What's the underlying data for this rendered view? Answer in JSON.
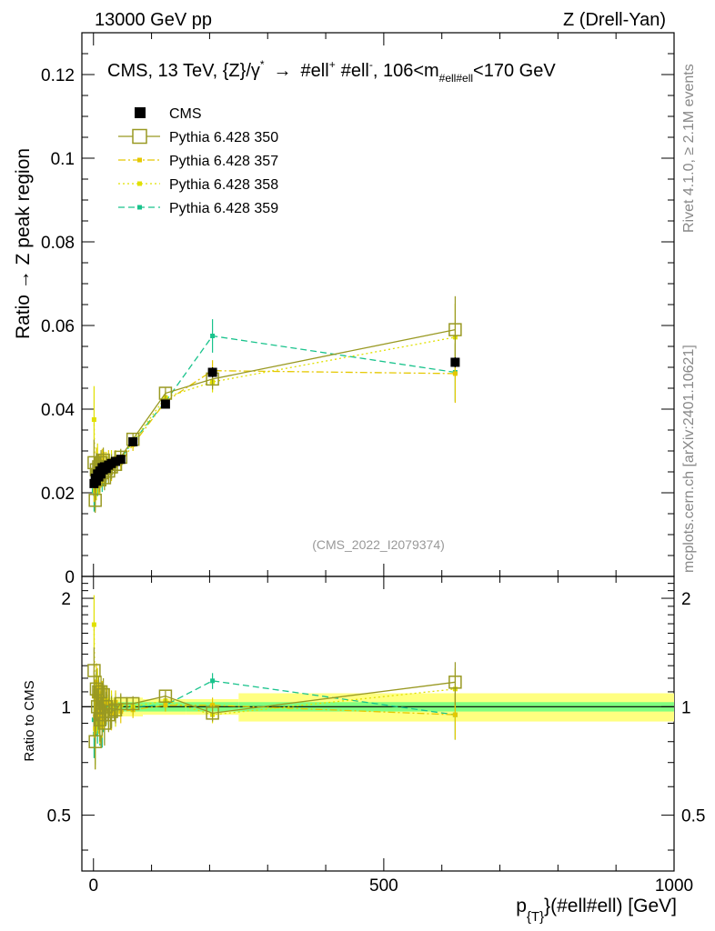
{
  "header": {
    "energy_label": "13000 GeV pp",
    "process_label": "Z (Drell-Yan)"
  },
  "side_labels": {
    "rivet": "Rivet 4.1.0, ≥ 2.1M events",
    "mcplots": "mcplots.cern.ch [arXiv:2401.10621]"
  },
  "watermark": "(CMS_2022_I2079374)",
  "colors": {
    "cms": "#000000",
    "p350": "#999922",
    "p357": "#e5c800",
    "p358": "#e0e000",
    "p359": "#19c38c",
    "band_inner": "#80ff80",
    "band_outer": "#ffff80"
  },
  "chart_data": {
    "type": "line",
    "title_main": "CMS, 13 TeV, {Z}/γ",
    "title_sup": "*",
    "title_arrow": "→",
    "title_ell1": "#ell",
    "title_ell1_sup": "+",
    "title_ell2": "#ell",
    "title_ell2_sup": "-",
    "title_range_pre": ", 106<m",
    "title_range_sub": "#ell#ell",
    "title_range_post": "<170 GeV",
    "xlabel_main": "p",
    "xlabel_sub": "{T}",
    "xlabel_rest": "}(#ell#ell) [GeV]",
    "ylabel": "Ratio → Z peak region",
    "ratio_ylabel": "Ratio to CMS",
    "xlim": [
      -20,
      1000
    ],
    "ylim": [
      0,
      0.13
    ],
    "ratio_ylim": [
      0.35,
      2.3
    ],
    "x_ticks": [
      0,
      500,
      1000
    ],
    "x_tick_labels": [
      "0",
      "500",
      "1000"
    ],
    "y_ticks": [
      0,
      0.02,
      0.04,
      0.06,
      0.08,
      0.1,
      0.12
    ],
    "y_tick_labels": [
      "0",
      "0.02",
      "0.04",
      "0.06",
      "0.08",
      "0.1",
      "0.12"
    ],
    "ratio_y_ticks": [
      0.5,
      1,
      2
    ],
    "ratio_y_tick_labels": [
      "0.5",
      "1",
      "2"
    ],
    "series": [
      {
        "name": "CMS",
        "key": "cms",
        "style": "data",
        "x": [
          1,
          3,
          5,
          7,
          9,
          11,
          13,
          15,
          17,
          19,
          22,
          26,
          31,
          38,
          47,
          68,
          124,
          205,
          623
        ],
        "y": [
          0.0222,
          0.0235,
          0.0228,
          0.0245,
          0.0238,
          0.0252,
          0.0245,
          0.026,
          0.0255,
          0.0262,
          0.0258,
          0.0266,
          0.027,
          0.0275,
          0.028,
          0.0322,
          0.0412,
          0.0488,
          0.0512
        ],
        "err": [
          0.0008,
          0.0008,
          0.0008,
          0.0008,
          0.0008,
          0.0008,
          0.0008,
          0.0008,
          0.0008,
          0.0008,
          0.0008,
          0.0008,
          0.0008,
          0.0008,
          0.0008,
          0.0008,
          0.001,
          0.0012,
          0.0012
        ]
      },
      {
        "name": "Pythia 6.428 350",
        "key": "p350",
        "style": "solid",
        "marker": "open-square",
        "x": [
          1,
          3,
          5,
          7,
          9,
          11,
          13,
          15,
          17,
          19,
          22,
          26,
          31,
          38,
          47,
          68,
          124,
          205,
          623
        ],
        "y": [
          0.0272,
          0.0182,
          0.0255,
          0.0242,
          0.0262,
          0.0231,
          0.0272,
          0.0248,
          0.0278,
          0.0236,
          0.0258,
          0.0252,
          0.0262,
          0.0268,
          0.0285,
          0.0328,
          0.0438,
          0.0472,
          0.059
        ],
        "err": [
          0.0055,
          0.003,
          0.004,
          0.003,
          0.003,
          0.003,
          0.003,
          0.003,
          0.003,
          0.003,
          0.003,
          0.003,
          0.003,
          0.002,
          0.002,
          0.0015,
          0.0015,
          0.0025,
          0.008
        ],
        "ratio": [
          1.26,
          0.8,
          1.12,
          1.0,
          1.1,
          0.92,
          1.1,
          0.95,
          1.08,
          0.9,
          1.0,
          0.95,
          0.97,
          0.98,
          1.02,
          1.02,
          1.07,
          0.96,
          1.17
        ],
        "ratio_err": [
          0.2,
          0.13,
          0.15,
          0.12,
          0.12,
          0.12,
          0.12,
          0.12,
          0.12,
          0.12,
          0.1,
          0.1,
          0.1,
          0.08,
          0.07,
          0.05,
          0.04,
          0.05,
          0.16
        ]
      },
      {
        "name": "Pythia 6.428 357",
        "key": "p357",
        "style": "dashdot",
        "marker": "small-square",
        "x": [
          1,
          3,
          5,
          7,
          9,
          11,
          13,
          15,
          17,
          19,
          22,
          26,
          31,
          38,
          47,
          68,
          124,
          205,
          623
        ],
        "y": [
          0.0238,
          0.0222,
          0.0268,
          0.0258,
          0.0228,
          0.0262,
          0.0242,
          0.0275,
          0.0252,
          0.0268,
          0.0262,
          0.0272,
          0.0258,
          0.0282,
          0.0272,
          0.0315,
          0.0418,
          0.0492,
          0.0485
        ],
        "err": [
          0.006,
          0.004,
          0.004,
          0.003,
          0.003,
          0.003,
          0.003,
          0.003,
          0.003,
          0.003,
          0.003,
          0.003,
          0.003,
          0.002,
          0.002,
          0.0015,
          0.0015,
          0.0025,
          0.007
        ],
        "ratio": [
          1.07,
          0.94,
          1.17,
          1.05,
          0.96,
          1.04,
          0.99,
          1.06,
          0.99,
          1.02,
          1.02,
          1.02,
          0.96,
          1.03,
          0.97,
          0.98,
          1.01,
          1.01,
          0.95
        ],
        "ratio_err": [
          0.25,
          0.15,
          0.15,
          0.12,
          0.12,
          0.12,
          0.12,
          0.12,
          0.12,
          0.12,
          0.1,
          0.1,
          0.1,
          0.08,
          0.07,
          0.05,
          0.04,
          0.05,
          0.14
        ]
      },
      {
        "name": "Pythia 6.428 358",
        "key": "p358",
        "style": "dotted",
        "marker": "small-square",
        "x": [
          1,
          3,
          5,
          7,
          9,
          11,
          13,
          15,
          17,
          19,
          22,
          26,
          31,
          38,
          47,
          68,
          124,
          205,
          623
        ],
        "y": [
          0.0375,
          0.0205,
          0.0232,
          0.0278,
          0.0248,
          0.0235,
          0.0268,
          0.0245,
          0.0262,
          0.0252,
          0.0268,
          0.0258,
          0.0272,
          0.0265,
          0.0282,
          0.0322,
          0.0428,
          0.0465,
          0.0572
        ],
        "err": [
          0.008,
          0.005,
          0.005,
          0.004,
          0.004,
          0.004,
          0.003,
          0.003,
          0.003,
          0.003,
          0.003,
          0.003,
          0.003,
          0.002,
          0.002,
          0.0015,
          0.0015,
          0.0025,
          0.008
        ],
        "ratio": [
          1.69,
          0.87,
          1.02,
          1.13,
          1.04,
          0.93,
          1.09,
          0.94,
          1.03,
          0.96,
          1.04,
          0.97,
          1.01,
          0.96,
          1.01,
          1.0,
          1.04,
          0.95,
          1.12
        ],
        "ratio_err": [
          0.35,
          0.2,
          0.18,
          0.15,
          0.15,
          0.14,
          0.12,
          0.12,
          0.12,
          0.12,
          0.1,
          0.1,
          0.1,
          0.08,
          0.07,
          0.05,
          0.04,
          0.05,
          0.16
        ]
      },
      {
        "name": "Pythia 6.428 359",
        "key": "p359",
        "style": "dashed",
        "marker": "small-square",
        "x": [
          1,
          3,
          5,
          7,
          9,
          11,
          13,
          15,
          17,
          19,
          22,
          26,
          31,
          38,
          47,
          68,
          124,
          205,
          623
        ],
        "y": [
          0.0205,
          0.0198,
          0.0248,
          0.0222,
          0.0252,
          0.0228,
          0.0245,
          0.0232,
          0.0248,
          0.0238,
          0.0255,
          0.0262,
          0.0265,
          0.0278,
          0.0282,
          0.0322,
          0.0418,
          0.0575,
          0.0488
        ],
        "err": [
          0.005,
          0.004,
          0.004,
          0.003,
          0.003,
          0.003,
          0.003,
          0.003,
          0.003,
          0.003,
          0.003,
          0.003,
          0.003,
          0.002,
          0.002,
          0.0015,
          0.0015,
          0.004,
          0.007
        ],
        "ratio": [
          0.92,
          0.84,
          1.09,
          0.91,
          1.06,
          0.9,
          1.0,
          0.89,
          0.97,
          0.91,
          0.99,
          0.98,
          0.98,
          1.01,
          1.01,
          1.0,
          1.01,
          1.18,
          0.95
        ],
        "ratio_err": [
          0.2,
          0.15,
          0.15,
          0.12,
          0.12,
          0.12,
          0.12,
          0.12,
          0.12,
          0.12,
          0.1,
          0.1,
          0.1,
          0.08,
          0.07,
          0.05,
          0.04,
          0.06,
          0.14
        ]
      }
    ],
    "ratio_band": {
      "bins": [
        0,
        4,
        8,
        12,
        16,
        20,
        24,
        30,
        40,
        55,
        85,
        160,
        250,
        1000
      ],
      "inner": [
        0.03,
        0.03,
        0.03,
        0.03,
        0.03,
        0.03,
        0.03,
        0.03,
        0.03,
        0.03,
        0.03,
        0.03,
        0.03
      ],
      "outer": [
        0.06,
        0.06,
        0.06,
        0.06,
        0.06,
        0.06,
        0.06,
        0.06,
        0.06,
        0.06,
        0.05,
        0.05,
        0.09
      ]
    }
  }
}
